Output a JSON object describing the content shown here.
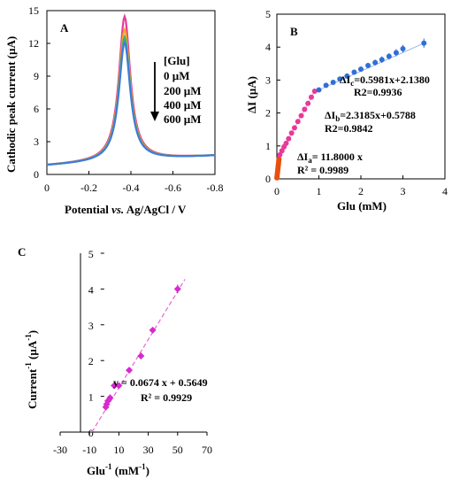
{
  "chart_data": [
    {
      "id": "A",
      "type": "line",
      "panel_label": "A",
      "xlabel_parts": [
        "Potential ",
        "vs.",
        " Ag/AgCl / V"
      ],
      "ylabel": "Cathodic peak current  (µA)",
      "xlim": [
        0.0,
        -0.8
      ],
      "ylim": [
        0,
        15
      ],
      "xticks": [
        0,
        -0.2,
        -0.4,
        -0.6,
        -0.8
      ],
      "xtick_labels": [
        "0",
        "-0.2",
        "-0.4",
        "-0.6",
        "-0.8"
      ],
      "yticks": [
        0,
        3,
        6,
        9,
        12,
        15
      ],
      "ytick_labels": [
        "0",
        "3",
        "6",
        "9",
        "12",
        "15"
      ],
      "legend_title": "[Glu]",
      "legend_items": [
        "0 µM",
        "200 µM",
        "400 µM",
        "600 µM"
      ],
      "series": [
        {
          "peak_current": 14.2,
          "color": "#e8399a"
        },
        {
          "peak_current": 13.0,
          "color": "#f5a623"
        },
        {
          "peak_current": 12.3,
          "color": "#3cb371"
        },
        {
          "peak_current": 11.8,
          "color": "#3b7dd8"
        }
      ],
      "peak_potential": -0.37,
      "baseline_start": 0.8,
      "baseline_end": 1.7
    },
    {
      "id": "B",
      "type": "scatter",
      "panel_label": "B",
      "xlabel": "Glu (mM)",
      "ylabel": "ΔI (µA)",
      "xlim": [
        0,
        4
      ],
      "ylim": [
        0,
        5
      ],
      "xticks": [
        0,
        1,
        2,
        3,
        4
      ],
      "xtick_labels": [
        "0",
        "1",
        "2",
        "3",
        "4"
      ],
      "yticks": [
        0,
        1,
        2,
        3,
        4,
        5
      ],
      "ytick_labels": [
        "0",
        "1",
        "2",
        "3",
        "4",
        "5"
      ],
      "series": [
        {
          "color": "#e8500e",
          "x": [
            0.0,
            0.005,
            0.01,
            0.015,
            0.02,
            0.025,
            0.03,
            0.035,
            0.04,
            0.045,
            0.05
          ],
          "y": [
            0.03,
            0.08,
            0.14,
            0.19,
            0.25,
            0.31,
            0.37,
            0.42,
            0.48,
            0.54,
            0.6
          ]
        },
        {
          "color": "#e8399a",
          "x": [
            0.07,
            0.12,
            0.17,
            0.22,
            0.28,
            0.35,
            0.42,
            0.5,
            0.58,
            0.66,
            0.74,
            0.82,
            0.9
          ],
          "y": [
            0.73,
            0.85,
            0.97,
            1.08,
            1.22,
            1.39,
            1.55,
            1.74,
            1.92,
            2.11,
            2.29,
            2.48,
            2.66
          ]
        },
        {
          "color": "#2f6fd6",
          "x": [
            1.0,
            1.17,
            1.34,
            1.5,
            1.67,
            1.84,
            2.0,
            2.17,
            2.34,
            2.5,
            2.67,
            2.84,
            3.0,
            3.5
          ],
          "y": [
            2.7,
            2.84,
            2.93,
            3.03,
            3.12,
            3.24,
            3.33,
            3.44,
            3.53,
            3.62,
            3.72,
            3.83,
            3.95,
            4.12
          ],
          "err": [
            0.05,
            0.05,
            0.06,
            0.06,
            0.07,
            0.07,
            0.08,
            0.08,
            0.09,
            0.1,
            0.1,
            0.11,
            0.12,
            0.14
          ]
        }
      ],
      "annotations": [
        {
          "main": "ΔI",
          "sub": "c",
          "rest": "=0.5981x+2.1380"
        },
        {
          "main": "R2=0.9936"
        },
        {
          "main": "ΔI",
          "sub": "b",
          "rest": "=2.3185x+0.5788"
        },
        {
          "main": "R2=0.9842"
        },
        {
          "main": "ΔI",
          "sub": "a",
          "rest": "= 11.8000 x"
        },
        {
          "main": "R² = 0.9989"
        }
      ]
    },
    {
      "id": "C",
      "type": "scatter",
      "panel_label": "C",
      "xlabel": "Glu",
      "xlabel_sup": "-1",
      "xlabel_rest": " (mM",
      "xlabel_unit_sup": "-1",
      "xlabel_close": ")",
      "ylabel": "Current",
      "ylabel_sup": "-1",
      "ylabel_rest": " (µA",
      "ylabel_unit_sup": "-1",
      "ylabel_close": ")",
      "xlim": [
        -30,
        70
      ],
      "ylim": [
        0,
        5
      ],
      "xticks": [
        -30,
        -10,
        10,
        30,
        50,
        70
      ],
      "xtick_labels": [
        "-30",
        "-10",
        "10",
        "30",
        "50",
        "70"
      ],
      "yticks": [
        0,
        1,
        2,
        3,
        4,
        5
      ],
      "ytick_labels": [
        "0",
        "1",
        "2",
        "3",
        "4",
        "5"
      ],
      "series": [
        {
          "color": "#d62ad0",
          "x": [
            1.1,
            1.7,
            2.5,
            4.0,
            6.8,
            10.0,
            17.0,
            25.0,
            33.0,
            50.0
          ],
          "y": [
            0.7,
            0.78,
            0.87,
            0.96,
            1.3,
            1.3,
            1.73,
            2.13,
            2.85,
            4.0
          ],
          "err": [
            0.05,
            0.05,
            0.05,
            0.06,
            0.06,
            0.06,
            0.07,
            0.08,
            0.08,
            0.12
          ]
        }
      ],
      "fit": {
        "slope": 0.0674,
        "intercept": 0.5649,
        "x_from": -8.4,
        "x_to": 55
      },
      "annotations": [
        "y = 0.0674 x + 0.5649",
        "R² = 0.9929"
      ]
    }
  ]
}
